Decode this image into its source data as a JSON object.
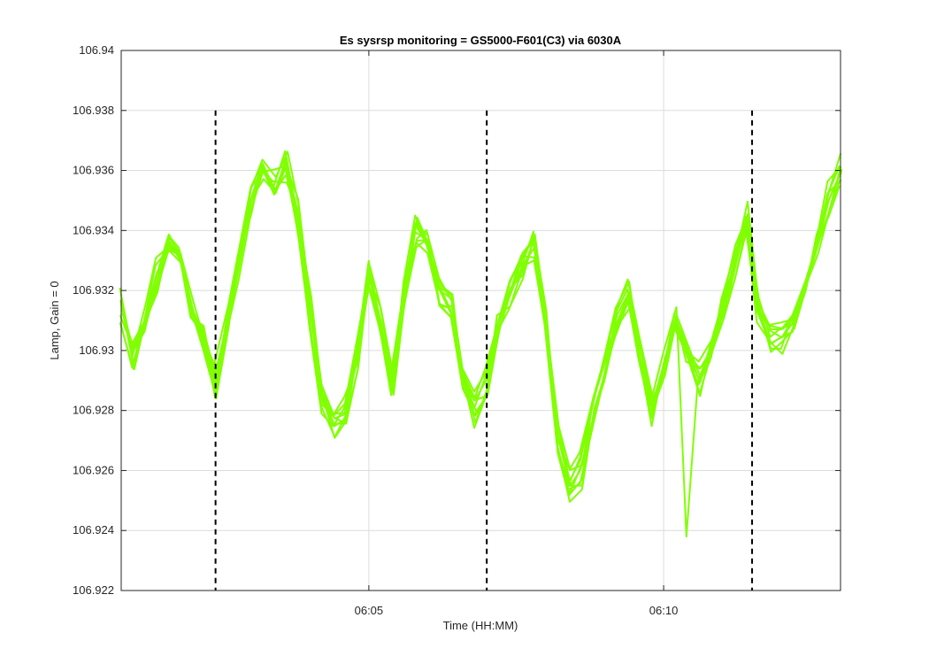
{
  "chart_data": {
    "type": "line",
    "title": "Es sysrsp monitoring = GS5000-F601(C3) via 6030A",
    "xlabel": "Time (HH:MM)",
    "ylabel": "Lamp, Gain = 0",
    "x_unit": "minutes",
    "xlim": [
      "06:00.8",
      "06:13.0"
    ],
    "ylim": [
      106.922,
      106.94
    ],
    "yticks": [
      106.922,
      106.924,
      106.926,
      106.928,
      106.93,
      106.932,
      106.934,
      106.936,
      106.938,
      106.94
    ],
    "ytick_labels": [
      "106.922",
      "106.924",
      "106.926",
      "106.928",
      "106.93",
      "106.932",
      "106.934",
      "106.936",
      "106.938",
      "106.94"
    ],
    "xticks": [
      "06:05",
      "06:10"
    ],
    "xtick_labels": [
      "06:05",
      "06:10"
    ],
    "grid": true,
    "line_color": "#80ff00",
    "marker_line_color": "#000000",
    "vertical_markers": {
      "x": [
        "06:02.4",
        "06:07.0",
        "06:11.5"
      ],
      "y_range": [
        106.922,
        106.938
      ],
      "style": "dashed"
    },
    "base_series": {
      "x": [
        "06:00.8",
        "06:01.0",
        "06:01.2",
        "06:01.4",
        "06:01.6",
        "06:01.8",
        "06:02.0",
        "06:02.2",
        "06:02.4",
        "06:02.6",
        "06:02.8",
        "06:03.0",
        "06:03.2",
        "06:03.4",
        "06:03.6",
        "06:03.8",
        "06:04.0",
        "06:04.2",
        "06:04.4",
        "06:04.6",
        "06:04.8",
        "06:05.0",
        "06:05.2",
        "06:05.4",
        "06:05.6",
        "06:05.8",
        "06:06.0",
        "06:06.2",
        "06:06.4",
        "06:06.6",
        "06:06.8",
        "06:07.0",
        "06:07.2",
        "06:07.4",
        "06:07.6",
        "06:07.8",
        "06:08.0",
        "06:08.2",
        "06:08.4",
        "06:08.6",
        "06:08.8",
        "06:09.0",
        "06:09.2",
        "06:09.4",
        "06:09.6",
        "06:09.8",
        "06:10.0",
        "06:10.2",
        "06:10.4",
        "06:10.6",
        "06:10.8",
        "06:11.0",
        "06:11.2",
        "06:11.4",
        "06:11.6",
        "06:11.8",
        "06:12.0",
        "06:12.2",
        "06:12.4",
        "06:12.6",
        "06:12.8",
        "06:13.0"
      ],
      "y": [
        106.9315,
        106.93,
        106.931,
        106.9325,
        106.9335,
        106.933,
        106.9315,
        106.9305,
        106.929,
        106.931,
        106.933,
        106.935,
        106.936,
        106.9355,
        106.9362,
        106.9345,
        106.9315,
        106.9285,
        106.9275,
        106.928,
        106.93,
        106.9325,
        106.931,
        106.929,
        106.932,
        106.934,
        106.9335,
        106.932,
        106.9315,
        106.929,
        106.928,
        106.929,
        106.931,
        106.932,
        106.933,
        106.9335,
        106.931,
        106.927,
        106.9255,
        106.926,
        106.928,
        106.9295,
        106.931,
        106.932,
        106.93,
        106.928,
        106.9295,
        106.931,
        106.93,
        106.929,
        106.93,
        106.9315,
        106.933,
        106.9345,
        106.9315,
        106.9305,
        106.9305,
        106.931,
        106.932,
        106.9335,
        106.935,
        106.936
      ]
    },
    "series_count": 10
  }
}
